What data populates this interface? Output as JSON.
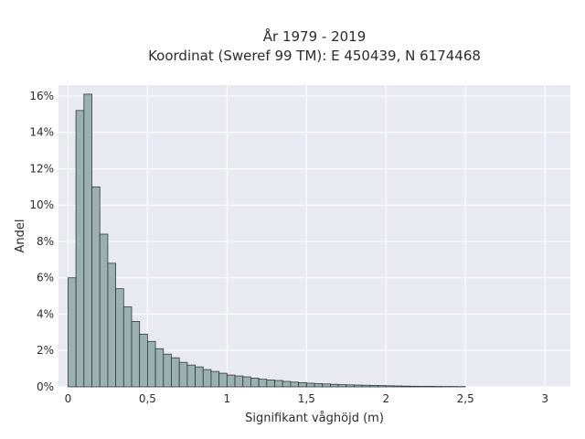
{
  "chart_data": {
    "type": "bar",
    "title_line1": "År 1979 - 2019",
    "title_line2": "Koordinat (Sweref 99 TM): E 450439, N 6174468",
    "xlabel": "Signifikant våghöjd (m)",
    "ylabel": "Andel",
    "bin_width": 0.05,
    "bin_start": 0,
    "xlim": [
      -0.06,
      3.16
    ],
    "ylim": [
      0,
      16.6
    ],
    "x_ticks": [
      0,
      0.5,
      1,
      1.5,
      2,
      2.5,
      3
    ],
    "x_tick_labels": [
      "0",
      "0,5",
      "1",
      "1,5",
      "2",
      "2,5",
      "3"
    ],
    "y_ticks": [
      0,
      2,
      4,
      6,
      8,
      10,
      12,
      14,
      16
    ],
    "y_tick_labels": [
      "0%",
      "2%",
      "4%",
      "6%",
      "8%",
      "10%",
      "12%",
      "14%",
      "16%"
    ],
    "values": [
      6.0,
      15.2,
      16.1,
      11.0,
      8.4,
      6.8,
      5.4,
      4.4,
      3.6,
      2.9,
      2.5,
      2.1,
      1.8,
      1.6,
      1.35,
      1.2,
      1.1,
      0.95,
      0.85,
      0.75,
      0.65,
      0.6,
      0.55,
      0.48,
      0.42,
      0.38,
      0.35,
      0.3,
      0.26,
      0.23,
      0.2,
      0.18,
      0.16,
      0.14,
      0.12,
      0.11,
      0.1,
      0.09,
      0.08,
      0.07,
      0.06,
      0.05,
      0.04,
      0.035,
      0.03,
      0.03,
      0.025,
      0.02,
      0.02,
      0.015
    ],
    "grid": true,
    "colors": {
      "bar_fill": "#9bb0b0",
      "bar_edge": "#2f3a3a",
      "plot_bg": "#e9e9f1",
      "grid": "#ffffff"
    }
  }
}
